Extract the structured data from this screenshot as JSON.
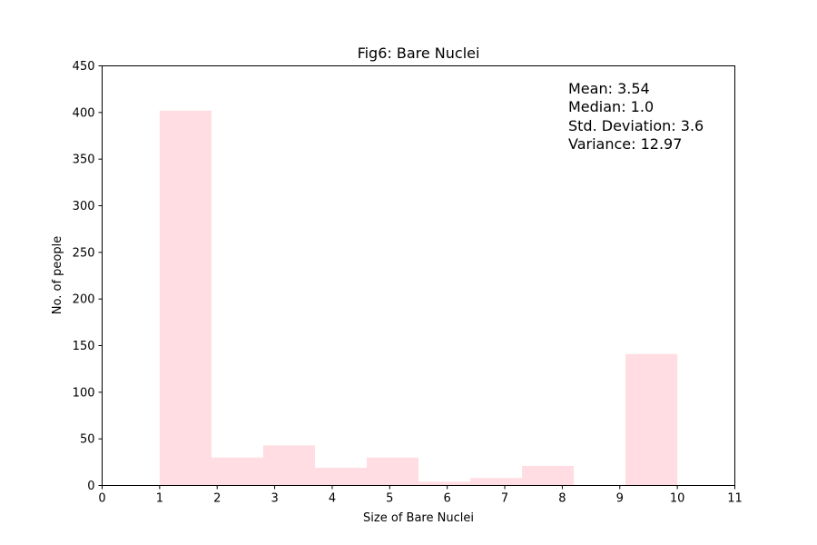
{
  "chart_data": {
    "type": "bar",
    "title": "Fig6: Bare Nuclei",
    "xlabel": "Size of Bare Nuclei",
    "ylabel": "No. of people",
    "xlim": [
      0,
      11
    ],
    "ylim": [
      0,
      450
    ],
    "xticks": [
      0,
      1,
      2,
      3,
      4,
      5,
      6,
      7,
      8,
      9,
      10,
      11
    ],
    "yticks": [
      0,
      50,
      100,
      150,
      200,
      250,
      300,
      350,
      400,
      450
    ],
    "bins": [
      {
        "x0": 1.0,
        "x1": 1.9,
        "count": 402
      },
      {
        "x0": 1.9,
        "x1": 2.8,
        "count": 30
      },
      {
        "x0": 2.8,
        "x1": 3.7,
        "count": 43
      },
      {
        "x0": 3.7,
        "x1": 4.6,
        "count": 19
      },
      {
        "x0": 4.6,
        "x1": 5.5,
        "count": 30
      },
      {
        "x0": 5.5,
        "x1": 6.4,
        "count": 4
      },
      {
        "x0": 6.4,
        "x1": 7.3,
        "count": 8
      },
      {
        "x0": 7.3,
        "x1": 8.2,
        "count": 21
      },
      {
        "x0": 8.2,
        "x1": 9.1,
        "count": 0
      },
      {
        "x0": 9.1,
        "x1": 10.0,
        "count": 141
      }
    ],
    "bar_color": "#ffdde2",
    "grid": false,
    "annotations": [
      "Mean: 3.54",
      "Median: 1.0",
      "Std. Deviation: 3.6",
      "Variance: 12.97"
    ]
  }
}
